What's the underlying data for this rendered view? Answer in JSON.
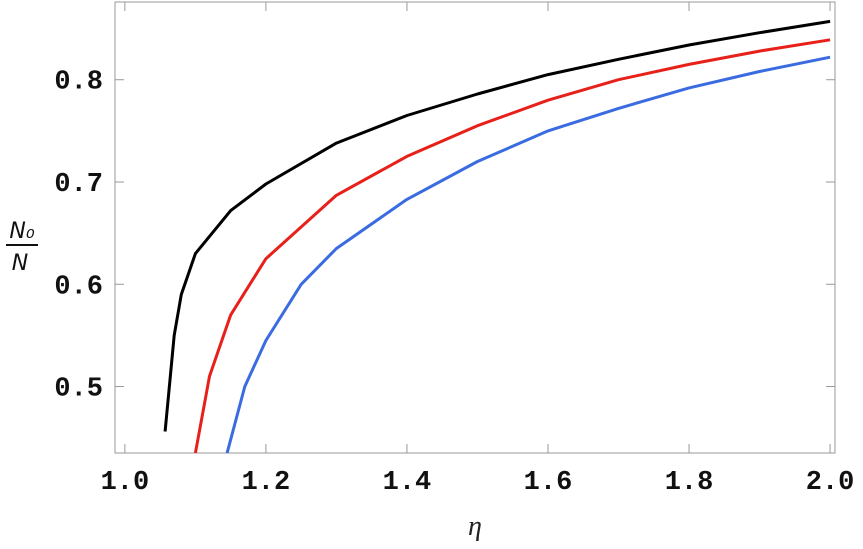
{
  "chart_data": {
    "type": "line",
    "xlabel": "η",
    "ylabel_numerator": "N₀",
    "ylabel_denominator": "N",
    "xlim": [
      0.986,
      2.007
    ],
    "ylim": [
      0.435,
      0.876
    ],
    "xticks": [
      {
        "value": 1,
        "label": "1.0"
      },
      1.2,
      1.4,
      1.6,
      1.8,
      {
        "value": 2,
        "label": "2.0"
      }
    ],
    "yticks": [
      0.5,
      0.6,
      0.7,
      0.8
    ],
    "series": [
      {
        "color": "#000000",
        "x": [
          1.057,
          1.07,
          1.08,
          1.1,
          1.15,
          1.2,
          1.3,
          1.4,
          1.5,
          1.6,
          1.7,
          1.8,
          1.9,
          2.0
        ],
        "values": [
          0.456,
          0.55,
          0.59,
          0.63,
          0.672,
          0.698,
          0.738,
          0.765,
          0.786,
          0.805,
          0.82,
          0.834,
          0.846,
          0.857
        ]
      },
      {
        "color": "#e8201a",
        "x": [
          1.1,
          1.12,
          1.15,
          1.2,
          1.3,
          1.4,
          1.5,
          1.6,
          1.7,
          1.8,
          1.9,
          2.0
        ],
        "values": [
          0.435,
          0.51,
          0.57,
          0.625,
          0.687,
          0.725,
          0.755,
          0.78,
          0.8,
          0.815,
          0.828,
          0.839
        ]
      },
      {
        "color": "#3a6be0",
        "x": [
          1.145,
          1.17,
          1.2,
          1.25,
          1.3,
          1.4,
          1.5,
          1.6,
          1.7,
          1.8,
          1.9,
          2.0
        ],
        "values": [
          0.435,
          0.5,
          0.545,
          0.6,
          0.635,
          0.683,
          0.72,
          0.75,
          0.772,
          0.792,
          0.808,
          0.822
        ]
      }
    ]
  }
}
